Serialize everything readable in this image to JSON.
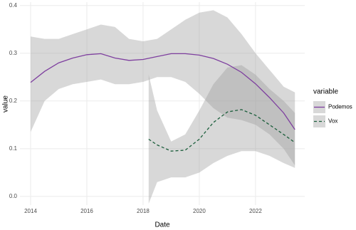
{
  "chart_data": {
    "type": "line",
    "xlabel": "Date",
    "ylabel": "value",
    "legend_title": "variable",
    "legend_position": "right",
    "grid": true,
    "xlim": [
      2013.62,
      2023.75
    ],
    "ylim": [
      -0.018,
      0.407
    ],
    "xticks": [
      2014,
      2016,
      2018,
      2020,
      2022
    ],
    "yticks": [
      {
        "value": 0,
        "label": "0.0"
      },
      0.1,
      0.2,
      0.3,
      0.4
    ],
    "band_color": "#9e9e9e",
    "series": [
      {
        "name": "Podemos",
        "color": "#7e3f9f",
        "linetype": "solid",
        "x": [
          2014,
          2014.5,
          2015,
          2015.5,
          2016,
          2016.5,
          2017,
          2017.5,
          2018,
          2018.5,
          2019,
          2019.5,
          2020,
          2020.5,
          2021,
          2021.5,
          2022,
          2022.5,
          2023,
          2023.4
        ],
        "values": [
          0.239,
          0.262,
          0.28,
          0.29,
          0.297,
          0.299,
          0.29,
          0.285,
          0.287,
          0.293,
          0.299,
          0.299,
          0.296,
          0.289,
          0.277,
          0.26,
          0.236,
          0.207,
          0.175,
          0.14
        ],
        "upper": [
          0.335,
          0.33,
          0.33,
          0.34,
          0.35,
          0.36,
          0.355,
          0.33,
          0.325,
          0.33,
          0.35,
          0.37,
          0.385,
          0.39,
          0.375,
          0.34,
          0.3,
          0.265,
          0.23,
          0.218
        ],
        "lower": [
          0.135,
          0.2,
          0.225,
          0.235,
          0.24,
          0.245,
          0.235,
          0.235,
          0.24,
          0.25,
          0.25,
          0.24,
          0.215,
          0.185,
          0.165,
          0.16,
          0.15,
          0.13,
          0.1,
          0.065
        ]
      },
      {
        "name": "Vox",
        "color": "#1b5e3b",
        "linetype": "dashed",
        "x": [
          2018.2,
          2018.5,
          2019,
          2019.5,
          2020,
          2020.5,
          2021,
          2021.5,
          2022,
          2022.5,
          2023,
          2023.4
        ],
        "values": [
          0.12,
          0.108,
          0.095,
          0.097,
          0.12,
          0.155,
          0.177,
          0.182,
          0.17,
          0.15,
          0.13,
          0.113
        ],
        "upper": [
          0.255,
          0.18,
          0.115,
          0.13,
          0.18,
          0.235,
          0.27,
          0.275,
          0.255,
          0.225,
          0.2,
          0.175
        ],
        "lower": [
          -0.015,
          0.03,
          0.04,
          0.04,
          0.05,
          0.07,
          0.085,
          0.095,
          0.095,
          0.085,
          0.07,
          0.06
        ]
      }
    ]
  }
}
